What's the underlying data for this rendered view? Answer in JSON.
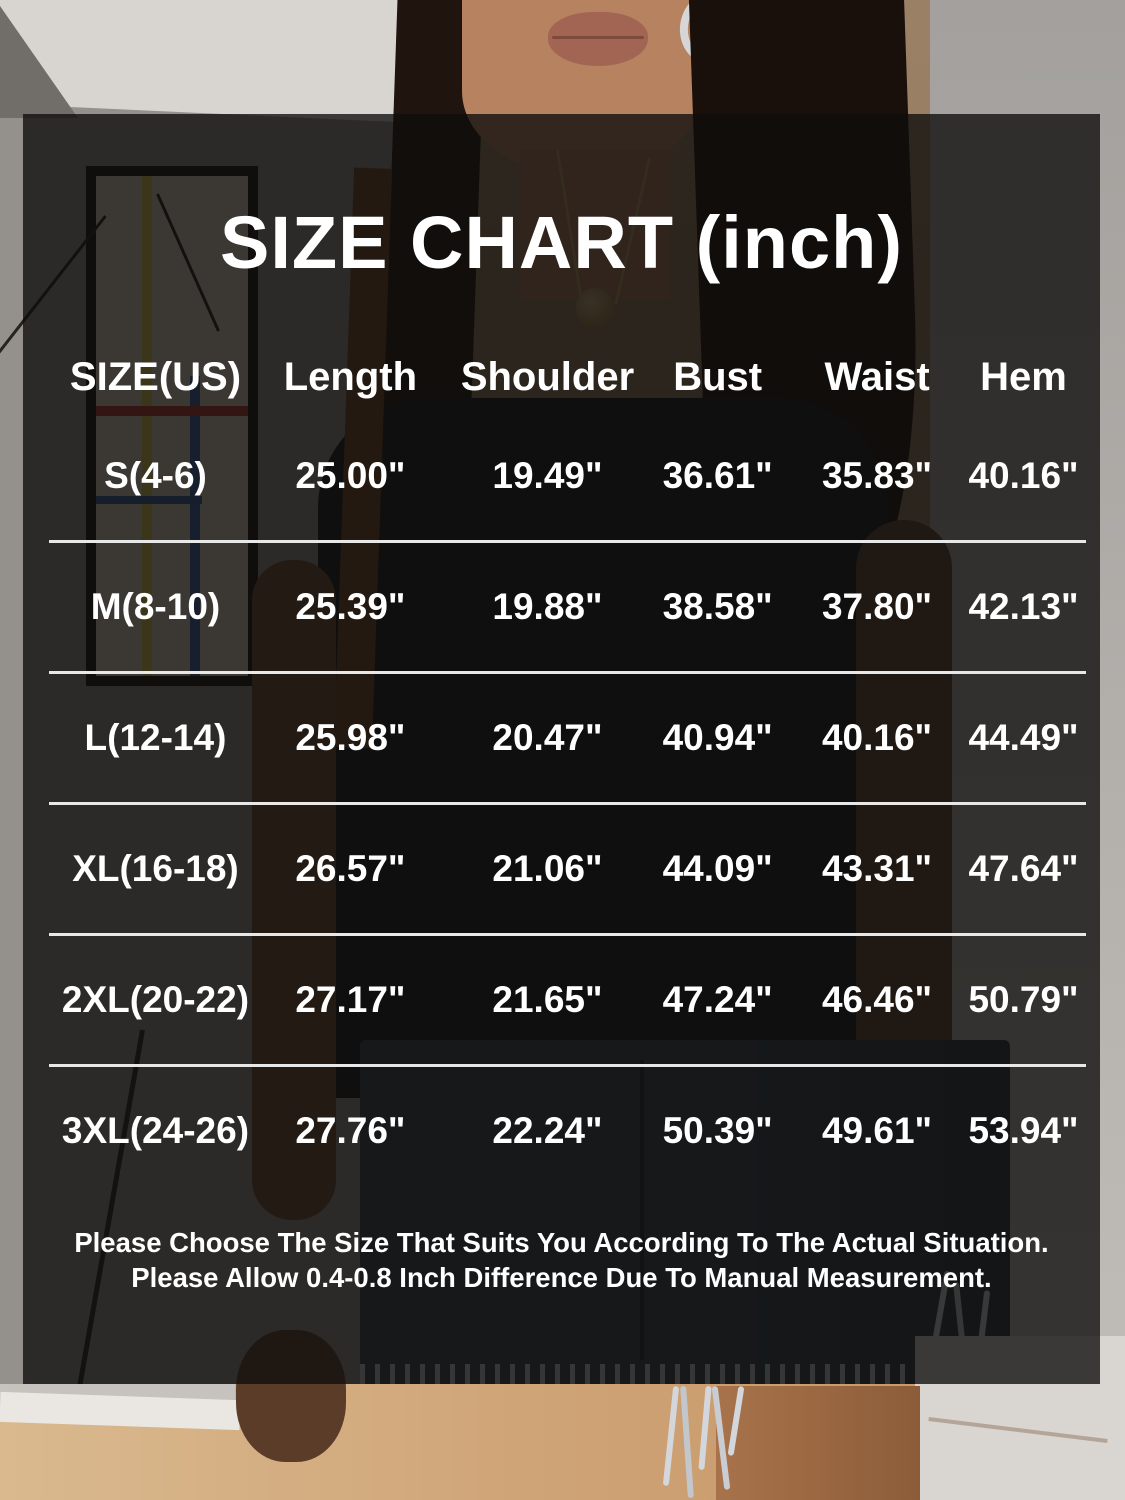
{
  "chart": {
    "title": "SIZE CHART (inch)",
    "columns": [
      "SIZE(US)",
      "Length",
      "Shoulder",
      "Bust",
      "Waist",
      "Hem"
    ],
    "rows": [
      [
        "S(4-6)",
        "25.00\"",
        "19.49\"",
        "36.61\"",
        "35.83\"",
        "40.16\""
      ],
      [
        "M(8-10)",
        "25.39\"",
        "19.88\"",
        "38.58\"",
        "37.80\"",
        "42.13\""
      ],
      [
        "L(12-14)",
        "25.98\"",
        "20.47\"",
        "40.94\"",
        "40.16\"",
        "44.49\""
      ],
      [
        "XL(16-18)",
        "26.57\"",
        "21.06\"",
        "44.09\"",
        "43.31\"",
        "47.64\""
      ],
      [
        "2XL(20-22)",
        "27.17\"",
        "21.65\"",
        "47.24\"",
        "46.46\"",
        "50.79\""
      ],
      [
        "3XL(24-26)",
        "27.76\"",
        "22.24\"",
        "50.39\"",
        "49.61\"",
        "53.94\""
      ]
    ],
    "footer": {
      "line1": "Please Choose The Size That Suits You According To The Actual Situation.",
      "line2": "Please Allow 0.4-0.8 Inch Difference Due To Manual Measurement."
    },
    "colors": {
      "text": "#ffffff",
      "separator": "#e8e8e8",
      "overlay": "rgba(14,13,12,0.78)"
    }
  },
  "chart_data": {
    "type": "table",
    "title": "SIZE CHART (inch)",
    "unit": "inch",
    "columns": [
      "SIZE(US)",
      "Length",
      "Shoulder",
      "Bust",
      "Waist",
      "Hem"
    ],
    "rows": [
      {
        "size_us": "S(4-6)",
        "length": 25.0,
        "shoulder": 19.49,
        "bust": 36.61,
        "waist": 35.83,
        "hem": 40.16
      },
      {
        "size_us": "M(8-10)",
        "length": 25.39,
        "shoulder": 19.88,
        "bust": 38.58,
        "waist": 37.8,
        "hem": 42.13
      },
      {
        "size_us": "L(12-14)",
        "length": 25.98,
        "shoulder": 20.47,
        "bust": 40.94,
        "waist": 40.16,
        "hem": 44.49
      },
      {
        "size_us": "XL(16-18)",
        "length": 26.57,
        "shoulder": 21.06,
        "bust": 44.09,
        "waist": 43.31,
        "hem": 47.64
      },
      {
        "size_us": "2XL(20-22)",
        "length": 27.17,
        "shoulder": 21.65,
        "bust": 47.24,
        "waist": 46.46,
        "hem": 50.79
      },
      {
        "size_us": "3XL(24-26)",
        "length": 27.76,
        "shoulder": 22.24,
        "bust": 50.39,
        "waist": 49.61,
        "hem": 53.94
      }
    ],
    "notes": [
      "Please Choose The Size That Suits You According To The Actual Situation.",
      "Please Allow 0.4-0.8 Inch Difference Due To Manual Measurement."
    ]
  }
}
